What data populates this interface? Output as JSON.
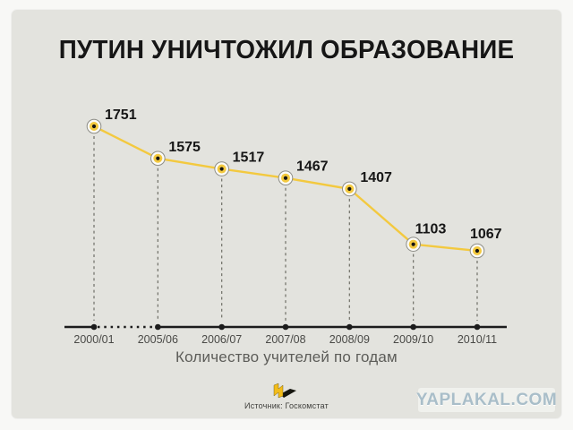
{
  "page": {
    "watermark": "YAPLAKAL.COM",
    "footer": {
      "source_label": "Источник: Госкомстат"
    }
  },
  "chart_data": {
    "type": "line",
    "title": "ПУТИН УНИЧТОЖИЛ ОБРАЗОВАНИЕ",
    "categories": [
      "2000/01",
      "2005/06",
      "2006/07",
      "2007/08",
      "2008/09",
      "2009/10",
      "2010/11"
    ],
    "values": [
      1751,
      1575,
      1517,
      1467,
      1407,
      1103,
      1067
    ],
    "xlabel": "Количество учителей по годам",
    "ylabel": "",
    "ylim": [
      1000,
      1800
    ],
    "grid": false,
    "legend": "none",
    "data_labels": true,
    "axis_break_between": [
      "2000/01",
      "2005/06"
    ],
    "colors": {
      "line": "#f3c93f",
      "marker_ring": "#8d8d87",
      "marker_fill": "#f3c93f",
      "marker_core": "#141414",
      "axis": "#1c1c1c",
      "dashed_guide": "#77776f",
      "value_label": "#161616",
      "tick_label": "#4a4a47",
      "card_background": "#e3e3de"
    }
  }
}
